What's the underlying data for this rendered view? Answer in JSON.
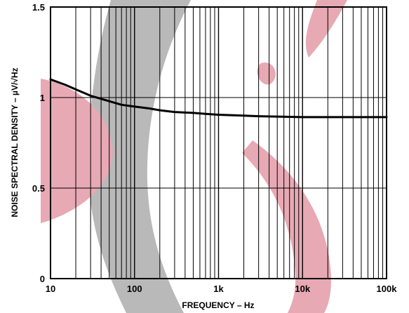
{
  "chart_data": {
    "type": "line",
    "title": "",
    "xlabel": "FREQUENCY – Hz",
    "ylabel": "NOISE SPECTRAL DENSITY – µV/√Hz",
    "x_scale": "log",
    "xlim": [
      10,
      100000
    ],
    "ylim": [
      0,
      1.5
    ],
    "grid": true,
    "x_tick_labels": [
      "10",
      "100",
      "1k",
      "10k",
      "100k"
    ],
    "y_tick_labels": [
      "0",
      "0.5",
      "1",
      "1.5"
    ],
    "series": [
      {
        "x": [
          10,
          15,
          20,
          30,
          50,
          70,
          100,
          150,
          200,
          300,
          500,
          700,
          1000,
          2000,
          3000,
          5000,
          10000,
          20000,
          50000,
          100000
        ],
        "y": [
          1.1,
          1.07,
          1.045,
          1.01,
          0.98,
          0.96,
          0.95,
          0.94,
          0.93,
          0.92,
          0.915,
          0.91,
          0.905,
          0.9,
          0.897,
          0.895,
          0.892,
          0.892,
          0.892,
          0.892
        ]
      }
    ]
  },
  "watermark_colors": {
    "gray": "#b9b9b9",
    "pink": "#e7a9b4"
  }
}
